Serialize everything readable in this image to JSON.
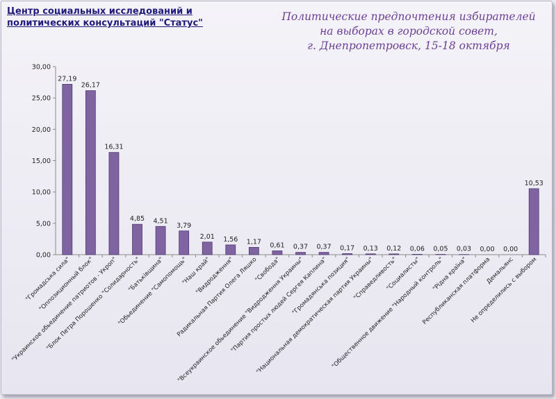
{
  "header": {
    "org_line1": "Центр социальных исследований и",
    "org_line2": "политических консультаций \"Статус\"",
    "title_line1": "Политические  предпочтения  избирателей",
    "title_line2": "на выборах в городской  совет,",
    "title_line3": "г. Днепропетровск,  15-18 октября"
  },
  "chart_data": {
    "type": "bar",
    "categories": [
      "\"Громадська сила\"",
      "\"Оппозиционный блок\"",
      "\"Украинское обьединение патриотов - Укроп\"",
      "\"Блок Петра Порошенко \"Солидарность\"",
      "\"Батьківщина\"",
      "\"Обьединение \"Самопомощь\"",
      "\"Наш край\"",
      "\"Видродження\"",
      "Радикальная Партия Олега Ляшко",
      "\"Свобода\"",
      "\"Всеукраинское обьединение  \"Видродження Украины\"",
      "\"Партия простых людей Сергея Каплина\"",
      "\"Громадянська позиция\"",
      "\"Национальная демократическая партия Украины\"",
      "\"Справедливость\"",
      "\"Социалисты\"",
      "\"Общественное движение \"Народный контроль\"",
      "\"Рідна країна\"",
      "Республиканская платформа",
      "Демальянс",
      "Не определились с выбором"
    ],
    "values": [
      27.19,
      26.17,
      16.31,
      4.85,
      4.51,
      3.79,
      2.01,
      1.56,
      1.17,
      0.61,
      0.37,
      0.37,
      0.17,
      0.13,
      0.12,
      0.06,
      0.05,
      0.03,
      0.0,
      0.0,
      10.53
    ],
    "value_labels": [
      "27,19",
      "26,17",
      "16,31",
      "4,85",
      "4,51",
      "3,79",
      "2,01",
      "1,56",
      "1,17",
      "0,61",
      "0,37",
      "0,37",
      "0,17",
      "0,13",
      "0,12",
      "0,06",
      "0,05",
      "0,03",
      "0,00",
      "0,00",
      "10,53"
    ],
    "ylim": [
      0,
      30
    ],
    "yticks": [
      0,
      5,
      10,
      15,
      20,
      25,
      30
    ],
    "ytick_labels": [
      "0,00",
      "5,00",
      "10,00",
      "15,00",
      "20,00",
      "25,00",
      "30,00"
    ],
    "grid": false,
    "bar_color": "#8064a2",
    "bar_border_color": "#4f3b70"
  }
}
